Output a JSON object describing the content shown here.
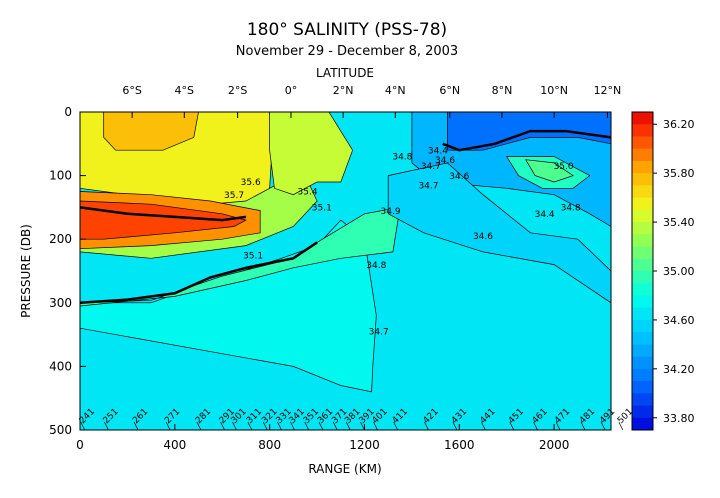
{
  "chart_data": {
    "type": "heatmap",
    "title": "180° SALINITY (PSS-78)",
    "subtitle": "November 29 - December 8, 2003",
    "xlabel": "RANGE (KM)",
    "ylabel": "PRESSURE (DB)",
    "top_axis_label": "LATITUDE",
    "xlim": [
      0,
      2240
    ],
    "ylim": [
      500,
      0
    ],
    "x_ticks": [
      0,
      400,
      800,
      1200,
      1600,
      2000
    ],
    "x_tick_labels": [
      "0",
      "400",
      "800",
      "1200",
      "1600",
      "2000"
    ],
    "y_ticks": [
      0,
      100,
      200,
      300,
      400,
      500
    ],
    "y_tick_labels": [
      "0",
      "100",
      "200",
      "300",
      "400",
      "500"
    ],
    "latitude_ticks": [
      {
        "label": "6°S",
        "range_km": 220
      },
      {
        "label": "4°S",
        "range_km": 440
      },
      {
        "label": "2°S",
        "range_km": 665
      },
      {
        "label": "0°",
        "range_km": 890
      },
      {
        "label": "2°N",
        "range_km": 1110
      },
      {
        "label": "4°N",
        "range_km": 1330
      },
      {
        "label": "6°N",
        "range_km": 1560
      },
      {
        "label": "8°N",
        "range_km": 1780
      },
      {
        "label": "10°N",
        "range_km": 2000
      },
      {
        "label": "12°N",
        "range_km": 2225
      }
    ],
    "station_labels": [
      {
        "label": "241",
        "range_km": 20
      },
      {
        "label": "251",
        "range_km": 120
      },
      {
        "label": "261",
        "range_km": 245
      },
      {
        "label": "271",
        "range_km": 380
      },
      {
        "label": "281",
        "range_km": 510
      },
      {
        "label": "291",
        "range_km": 610
      },
      {
        "label": "301",
        "range_km": 660
      },
      {
        "label": "311",
        "range_km": 725
      },
      {
        "label": "321",
        "range_km": 790
      },
      {
        "label": "331",
        "range_km": 850
      },
      {
        "label": "341",
        "range_km": 905
      },
      {
        "label": "351",
        "range_km": 965
      },
      {
        "label": "361",
        "range_km": 1025
      },
      {
        "label": "371",
        "range_km": 1085
      },
      {
        "label": "381",
        "range_km": 1140
      },
      {
        "label": "391",
        "range_km": 1200
      },
      {
        "label": "401",
        "range_km": 1255
      },
      {
        "label": "411",
        "range_km": 1340
      },
      {
        "label": "421",
        "range_km": 1470
      },
      {
        "label": "431",
        "range_km": 1590
      },
      {
        "label": "441",
        "range_km": 1710
      },
      {
        "label": "451",
        "range_km": 1830
      },
      {
        "label": "461",
        "range_km": 1930
      },
      {
        "label": "471",
        "range_km": 2025
      },
      {
        "label": "481",
        "range_km": 2130
      },
      {
        "label": "491",
        "range_km": 2215
      },
      {
        "label": "501",
        "range_km": 2290
      }
    ],
    "colorbar": {
      "min": 33.7,
      "max": 36.3,
      "ticks": [
        36.2,
        35.8,
        35.4,
        35.0,
        34.6,
        34.2,
        33.8
      ],
      "tick_labels": [
        "36.20",
        "35.80",
        "35.40",
        "35.00",
        "34.60",
        "34.20",
        "33.80"
      ]
    },
    "regions": [
      {
        "name": "background",
        "value": 34.65,
        "points": [
          [
            0,
            0
          ],
          [
            2240,
            0
          ],
          [
            2240,
            500
          ],
          [
            0,
            500
          ]
        ]
      },
      {
        "name": "deep-band",
        "value": 34.75,
        "points": [
          [
            0,
            340
          ],
          [
            600,
            380
          ],
          [
            900,
            400
          ],
          [
            1100,
            430
          ],
          [
            1230,
            440
          ],
          [
            1235,
            400
          ],
          [
            1250,
            320
          ],
          [
            1200,
            200
          ],
          [
            1100,
            170
          ],
          [
            1000,
            210
          ],
          [
            850,
            230
          ],
          [
            600,
            260
          ],
          [
            300,
            300
          ],
          [
            0,
            300
          ]
        ]
      },
      {
        "name": "mid-band",
        "value": 34.95,
        "points": [
          [
            0,
            300
          ],
          [
            300,
            296
          ],
          [
            600,
            258
          ],
          [
            900,
            230
          ],
          [
            1000,
            205
          ],
          [
            1200,
            160
          ],
          [
            1350,
            150
          ],
          [
            1320,
            220
          ],
          [
            1100,
            230
          ],
          [
            900,
            245
          ],
          [
            700,
            265
          ],
          [
            400,
            290
          ],
          [
            0,
            305
          ]
        ]
      },
      {
        "name": "south-warm-upper",
        "value": 35.55,
        "points": [
          [
            0,
            0
          ],
          [
            800,
            0
          ],
          [
            810,
            60
          ],
          [
            800,
            120
          ],
          [
            700,
            160
          ],
          [
            400,
            140
          ],
          [
            0,
            120
          ]
        ]
      },
      {
        "name": "south-upper-inner",
        "value": 35.75,
        "points": [
          [
            100,
            0
          ],
          [
            500,
            0
          ],
          [
            480,
            40
          ],
          [
            350,
            60
          ],
          [
            150,
            60
          ],
          [
            100,
            40
          ]
        ]
      },
      {
        "name": "south-yellow",
        "value": 35.3,
        "points": [
          [
            0,
            220
          ],
          [
            300,
            230
          ],
          [
            700,
            210
          ],
          [
            900,
            180
          ],
          [
            1000,
            140
          ],
          [
            950,
            100
          ],
          [
            850,
            110
          ],
          [
            700,
            140
          ],
          [
            400,
            150
          ],
          [
            0,
            140
          ]
        ]
      },
      {
        "name": "south-core-outer",
        "value": 35.9,
        "points": [
          [
            0,
            125
          ],
          [
            300,
            130
          ],
          [
            550,
            140
          ],
          [
            760,
            155
          ],
          [
            760,
            190
          ],
          [
            600,
            200
          ],
          [
            300,
            210
          ],
          [
            0,
            215
          ]
        ]
      },
      {
        "name": "south-core",
        "value": 36.1,
        "points": [
          [
            0,
            140
          ],
          [
            300,
            145
          ],
          [
            600,
            160
          ],
          [
            700,
            170
          ],
          [
            650,
            180
          ],
          [
            400,
            190
          ],
          [
            100,
            200
          ],
          [
            0,
            200
          ]
        ]
      },
      {
        "name": "equator-yellow",
        "value": 35.4,
        "points": [
          [
            800,
            0
          ],
          [
            1050,
            0
          ],
          [
            1150,
            60
          ],
          [
            1100,
            110
          ],
          [
            1000,
            110
          ],
          [
            900,
            130
          ],
          [
            820,
            120
          ],
          [
            800,
            60
          ]
        ]
      },
      {
        "name": "north-fresh",
        "value": 34.4,
        "points": [
          [
            1400,
            0
          ],
          [
            2240,
            0
          ],
          [
            2240,
            180
          ],
          [
            2150,
            160
          ],
          [
            2000,
            130
          ],
          [
            1800,
            120
          ],
          [
            1500,
            110
          ],
          [
            1400,
            80
          ]
        ]
      },
      {
        "name": "north-fresher",
        "value": 34.1,
        "points": [
          [
            1550,
            0
          ],
          [
            2240,
            0
          ],
          [
            2240,
            50
          ],
          [
            2100,
            40
          ],
          [
            1900,
            40
          ],
          [
            1700,
            60
          ],
          [
            1550,
            60
          ]
        ]
      },
      {
        "name": "north-upper-cyan",
        "value": 34.55,
        "points": [
          [
            1300,
            100
          ],
          [
            1550,
            80
          ],
          [
            1700,
            130
          ],
          [
            1900,
            190
          ],
          [
            2100,
            200
          ],
          [
            2240,
            250
          ],
          [
            2240,
            300
          ],
          [
            2000,
            240
          ],
          [
            1700,
            220
          ],
          [
            1450,
            190
          ],
          [
            1300,
            160
          ]
        ]
      },
      {
        "name": "north-subsurface-salty",
        "value": 34.9,
        "points": [
          [
            1800,
            70
          ],
          [
            2000,
            70
          ],
          [
            2150,
            100
          ],
          [
            2080,
            120
          ],
          [
            1950,
            120
          ],
          [
            1850,
            100
          ]
        ]
      },
      {
        "name": "north-subsurface-core",
        "value": 35.05,
        "points": [
          [
            1880,
            75
          ],
          [
            2000,
            80
          ],
          [
            2080,
            100
          ],
          [
            2000,
            110
          ],
          [
            1920,
            100
          ]
        ]
      }
    ],
    "contour_labels": [
      {
        "label": "34.8",
        "x": 1360,
        "y": 75
      },
      {
        "label": "34.7",
        "x": 1480,
        "y": 90
      },
      {
        "label": "34.6",
        "x": 1540,
        "y": 80
      },
      {
        "label": "34.4",
        "x": 1510,
        "y": 65
      },
      {
        "label": "34.7",
        "x": 1470,
        "y": 120
      },
      {
        "label": "34.6",
        "x": 1600,
        "y": 105
      },
      {
        "label": "35.0",
        "x": 2040,
        "y": 90
      },
      {
        "label": "34.8",
        "x": 2070,
        "y": 155
      },
      {
        "label": "34.4",
        "x": 1960,
        "y": 165
      },
      {
        "label": "34.9",
        "x": 1310,
        "y": 160
      },
      {
        "label": "35.1",
        "x": 1020,
        "y": 155
      },
      {
        "label": "35.4",
        "x": 960,
        "y": 130
      },
      {
        "label": "34.6",
        "x": 1700,
        "y": 200
      },
      {
        "label": "34.8",
        "x": 1250,
        "y": 245
      },
      {
        "label": "35.1",
        "x": 730,
        "y": 230
      },
      {
        "label": "35.6",
        "x": 720,
        "y": 115
      },
      {
        "label": "35.7",
        "x": 650,
        "y": 135
      },
      {
        "label": "34.7",
        "x": 1260,
        "y": 350
      }
    ],
    "thick_contours": [
      {
        "value": 34.6,
        "points": [
          [
            1530,
            50
          ],
          [
            1600,
            60
          ],
          [
            1750,
            50
          ],
          [
            1900,
            30
          ],
          [
            2050,
            30
          ],
          [
            2240,
            40
          ]
        ]
      },
      {
        "value": 35.0,
        "points": [
          [
            0,
            300
          ],
          [
            200,
            295
          ],
          [
            400,
            285
          ],
          [
            550,
            260
          ],
          [
            700,
            245
          ],
          [
            900,
            230
          ],
          [
            1000,
            205
          ]
        ]
      },
      {
        "value": 36.0,
        "points": [
          [
            0,
            150
          ],
          [
            200,
            160
          ],
          [
            400,
            165
          ],
          [
            600,
            170
          ],
          [
            700,
            165
          ]
        ]
      }
    ]
  }
}
